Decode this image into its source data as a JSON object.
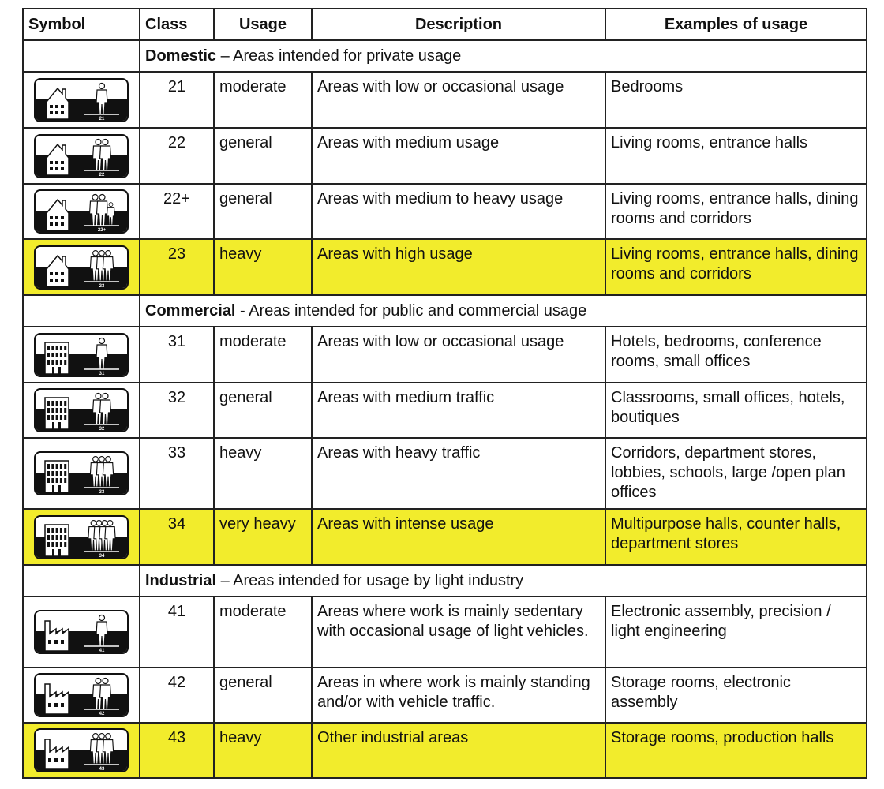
{
  "headers": [
    "Symbol",
    "Class",
    "Usage",
    "Description",
    "Examples of usage"
  ],
  "highlight_color": "#f2ec2c",
  "sections": [
    {
      "title": "Domestic",
      "sep": " – ",
      "subtitle": "Areas intended for private usage",
      "building": "house",
      "rows": [
        {
          "class": "21",
          "usage": "moderate",
          "description": "Areas with low or occasional usage",
          "examples": "Bedrooms",
          "people": 1,
          "child": false,
          "highlight": false
        },
        {
          "class": "22",
          "usage": "general",
          "description": "Areas with medium usage",
          "examples": "Living rooms, entrance halls",
          "people": 2,
          "child": false,
          "highlight": false
        },
        {
          "class": "22+",
          "usage": "general",
          "description": "Areas with medium to heavy usage",
          "examples": "Living rooms, entrance halls, dining rooms and corridors",
          "people": 2,
          "child": true,
          "highlight": false
        },
        {
          "class": "23",
          "usage": "heavy",
          "description": "Areas with high usage",
          "examples": "Living rooms, entrance halls, dining rooms and corridors",
          "people": 3,
          "child": false,
          "highlight": true
        }
      ]
    },
    {
      "title": "Commercial",
      "sep": " - ",
      "subtitle": "Areas intended for public and commercial usage",
      "building": "office",
      "rows": [
        {
          "class": "31",
          "usage": "moderate",
          "description": "Areas with low or occasional usage",
          "examples": "Hotels, bedrooms, conference rooms, small offices",
          "people": 1,
          "child": false,
          "highlight": false
        },
        {
          "class": "32",
          "usage": "general",
          "description": "Areas with medium traffic",
          "examples": "Classrooms, small offices, hotels, boutiques",
          "people": 2,
          "child": false,
          "highlight": false
        },
        {
          "class": "33",
          "usage": "heavy",
          "description": "Areas with heavy traffic",
          "examples": "Corridors, department stores, lobbies, schools, large /open plan offices",
          "people": 3,
          "child": false,
          "highlight": false
        },
        {
          "class": "34",
          "usage": "very heavy",
          "description": "Areas with intense usage",
          "examples": "Multipurpose halls, counter halls, department stores",
          "people": 4,
          "child": false,
          "highlight": true
        }
      ]
    },
    {
      "title": "Industrial",
      "sep": " – ",
      "subtitle": "Areas intended for usage by light industry",
      "building": "factory",
      "rows": [
        {
          "class": "41",
          "usage": "moderate",
          "description": "Areas where work is mainly sedentary with occasional usage of light vehicles.",
          "examples": "Electronic assembly, precision / light engineering",
          "people": 1,
          "child": false,
          "highlight": false
        },
        {
          "class": "42",
          "usage": "general",
          "description": "Areas in where work is mainly standing and/or with vehicle traffic.",
          "examples": "Storage rooms, electronic assembly",
          "people": 2,
          "child": false,
          "highlight": false
        },
        {
          "class": "43",
          "usage": "heavy",
          "description": "Other industrial areas",
          "examples": "Storage rooms, production halls",
          "people": 3,
          "child": false,
          "highlight": true
        }
      ]
    }
  ]
}
